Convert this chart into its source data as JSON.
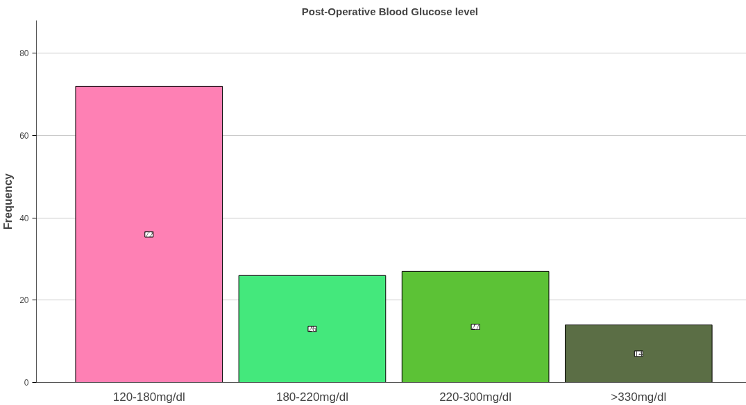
{
  "chart_data": {
    "type": "bar",
    "title": "Post-Operative  Blood Glucose level",
    "ylabel": "Frequency",
    "categories": [
      "120-180mg/dl",
      "180-220mg/dl",
      "220-300mg/dl",
      ">330mg/dl"
    ],
    "values": [
      72,
      26,
      27,
      14
    ],
    "colors": [
      "#fe80b4",
      "#44e87c",
      "#5cc236",
      "#5b6e45"
    ],
    "ylim": [
      0,
      88
    ],
    "yticks": [
      0,
      20,
      40,
      60,
      80
    ],
    "grid": "y",
    "data_labels": true
  }
}
